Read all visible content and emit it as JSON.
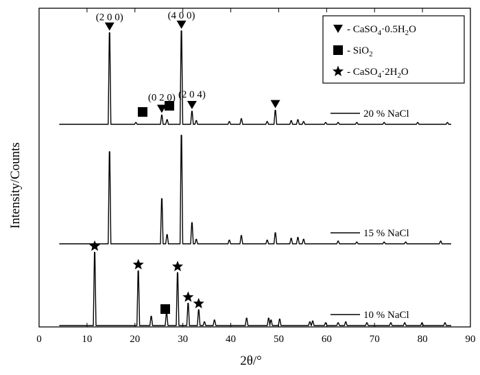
{
  "chart_data": {
    "type": "line",
    "title": "",
    "xlabel": "2θ/°",
    "ylabel": "Intensity/Counts",
    "xlim": [
      0,
      90
    ],
    "xticks": [
      0,
      10,
      20,
      30,
      40,
      50,
      60,
      70,
      80,
      90
    ],
    "ylim": [
      0,
      1
    ],
    "y_ticks_shown": false,
    "grid": false,
    "legend": {
      "placement": "top-right",
      "entries": [
        {
          "symbol": "down-triangle-icon",
          "label": "- CaSO4·0.5H2O"
        },
        {
          "symbol": "filled-square-icon",
          "label": "- SiO2"
        },
        {
          "symbol": "star-icon",
          "label": "- CaSO4·2H2O"
        }
      ]
    },
    "series": [
      {
        "name": "20 % NaCl",
        "order": 0,
        "peaks": [
          [
            14.7,
            0.98
          ],
          [
            20.2,
            0.02
          ],
          [
            25.6,
            0.1
          ],
          [
            26.7,
            0.05
          ],
          [
            29.7,
            1.0
          ],
          [
            31.9,
            0.14
          ],
          [
            32.8,
            0.04
          ],
          [
            39.7,
            0.03
          ],
          [
            42.2,
            0.06
          ],
          [
            47.6,
            0.03
          ],
          [
            49.3,
            0.15
          ],
          [
            52.6,
            0.04
          ],
          [
            54.0,
            0.05
          ],
          [
            55.2,
            0.03
          ],
          [
            59.8,
            0.02
          ],
          [
            62.4,
            0.02
          ],
          [
            66.3,
            0.02
          ],
          [
            72.0,
            0.02
          ],
          [
            79.0,
            0.02
          ],
          [
            85.2,
            0.02
          ]
        ]
      },
      {
        "name": "15 % NaCl",
        "order": 1,
        "peaks": [
          [
            14.7,
            1.0
          ],
          [
            25.6,
            0.49
          ],
          [
            26.7,
            0.1
          ],
          [
            29.7,
            1.18
          ],
          [
            31.9,
            0.23
          ],
          [
            32.8,
            0.05
          ],
          [
            39.7,
            0.04
          ],
          [
            42.2,
            0.09
          ],
          [
            47.6,
            0.04
          ],
          [
            49.3,
            0.12
          ],
          [
            52.6,
            0.06
          ],
          [
            54.0,
            0.07
          ],
          [
            55.2,
            0.05
          ],
          [
            62.4,
            0.03
          ],
          [
            66.3,
            0.02
          ],
          [
            72.0,
            0.02
          ],
          [
            76.5,
            0.02
          ],
          [
            83.8,
            0.03
          ]
        ]
      },
      {
        "name": "10 % NaCl",
        "order": 2,
        "peaks": [
          [
            11.6,
            0.79
          ],
          [
            20.7,
            0.59
          ],
          [
            23.4,
            0.1
          ],
          [
            26.6,
            0.14
          ],
          [
            28.9,
            0.57
          ],
          [
            31.1,
            0.24
          ],
          [
            33.3,
            0.17
          ],
          [
            34.5,
            0.04
          ],
          [
            36.6,
            0.06
          ],
          [
            43.3,
            0.08
          ],
          [
            47.9,
            0.08
          ],
          [
            48.4,
            0.06
          ],
          [
            50.2,
            0.07
          ],
          [
            56.5,
            0.04
          ],
          [
            57.1,
            0.05
          ],
          [
            59.8,
            0.03
          ],
          [
            62.4,
            0.03
          ],
          [
            64.0,
            0.04
          ],
          [
            68.4,
            0.03
          ],
          [
            73.4,
            0.03
          ],
          [
            76.3,
            0.03
          ],
          [
            79.9,
            0.03
          ],
          [
            84.7,
            0.03
          ]
        ]
      }
    ],
    "annotations": [
      {
        "text": "(2 0 0)",
        "x": 14.7,
        "series": 0,
        "marker": "down-triangle-icon"
      },
      {
        "text": "(4 0 0)",
        "x": 29.7,
        "series": 0,
        "marker": "down-triangle-icon"
      },
      {
        "text": "(0 2 0)",
        "x": 25.6,
        "series": 0,
        "marker": "down-triangle-icon"
      },
      {
        "text": "(2 0 4)",
        "x": 31.9,
        "series": 0,
        "marker": "down-triangle-icon"
      },
      {
        "text": "",
        "x": 49.3,
        "series": 0,
        "marker": "down-triangle-icon"
      },
      {
        "text": "",
        "x": 21.5,
        "series": 0,
        "marker": "filled-square-icon"
      },
      {
        "text": "",
        "x": 27.8,
        "series": 0,
        "marker": "filled-square-icon"
      },
      {
        "text": "",
        "x": 11.6,
        "series": 2,
        "marker": "star-icon"
      },
      {
        "text": "",
        "x": 20.7,
        "series": 2,
        "marker": "star-icon"
      },
      {
        "text": "",
        "x": 28.9,
        "series": 2,
        "marker": "star-icon"
      },
      {
        "text": "",
        "x": 31.1,
        "series": 2,
        "marker": "star-icon"
      },
      {
        "text": "",
        "x": 33.3,
        "series": 2,
        "marker": "star-icon"
      },
      {
        "text": "",
        "x": 26.5,
        "series": 2,
        "marker": "filled-square-icon"
      }
    ]
  }
}
